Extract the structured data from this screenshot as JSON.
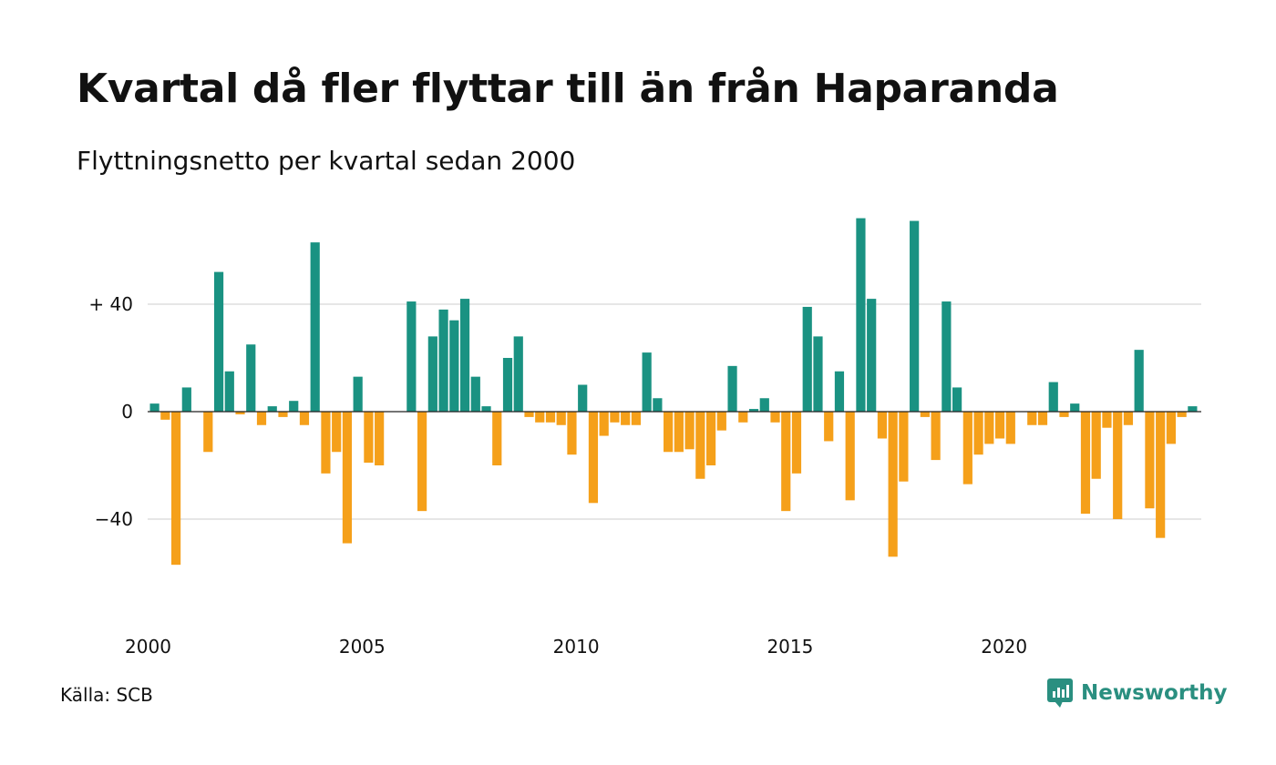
{
  "header": {
    "title": "Kvartal då fler flyttar till än från Haparanda",
    "subtitle": "Flyttningsnetto per kvartal sedan 2000"
  },
  "footer": {
    "source": "Källa: SCB",
    "brand": "Newsworthy"
  },
  "colors": {
    "positive": "#1a9282",
    "negative": "#f5a01a",
    "grid": "#dddddd",
    "brand": "#2a8f80"
  },
  "icons": {
    "brand_logo": "newsworthy-logo-icon"
  },
  "chart_data": {
    "type": "bar",
    "title": "Kvartal då fler flyttar till än från Haparanda",
    "subtitle": "Flyttningsnetto per kvartal sedan 2000",
    "x_start_year": 2000,
    "quarters_per_year": 4,
    "values": [
      3,
      -3,
      -57,
      9,
      0,
      -15,
      52,
      15,
      -1,
      25,
      -5,
      2,
      -2,
      4,
      -5,
      63,
      -23,
      -15,
      -49,
      13,
      -19,
      -20,
      0,
      0,
      41,
      -37,
      28,
      38,
      34,
      42,
      13,
      2,
      -20,
      20,
      28,
      -2,
      -4,
      -4,
      -5,
      -16,
      10,
      -34,
      -9,
      -4,
      -5,
      -5,
      22,
      5,
      -15,
      -15,
      -14,
      -25,
      -20,
      -7,
      17,
      -4,
      1,
      5,
      -4,
      -37,
      -23,
      39,
      28,
      -11,
      15,
      -33,
      72,
      42,
      -10,
      -54,
      -26,
      71,
      -2,
      -18,
      41,
      9,
      -27,
      -16,
      -12,
      -10,
      -12,
      0,
      -5,
      -5,
      11,
      -2,
      3,
      -38,
      -25,
      -6,
      -40,
      -5,
      23,
      -36,
      -47,
      -12,
      -2,
      2
    ],
    "yticks": [
      {
        "value": 40,
        "label": "+ 40"
      },
      {
        "value": 0,
        "label": "0"
      },
      {
        "value": -40,
        "label": "−40"
      }
    ],
    "xticks": [
      {
        "year": 2000,
        "label": "2000"
      },
      {
        "year": 2005,
        "label": "2005"
      },
      {
        "year": 2010,
        "label": "2010"
      },
      {
        "year": 2015,
        "label": "2015"
      },
      {
        "year": 2020,
        "label": "2020"
      }
    ],
    "ylim": [
      -80,
      72
    ],
    "grid": true,
    "legend": "none"
  }
}
